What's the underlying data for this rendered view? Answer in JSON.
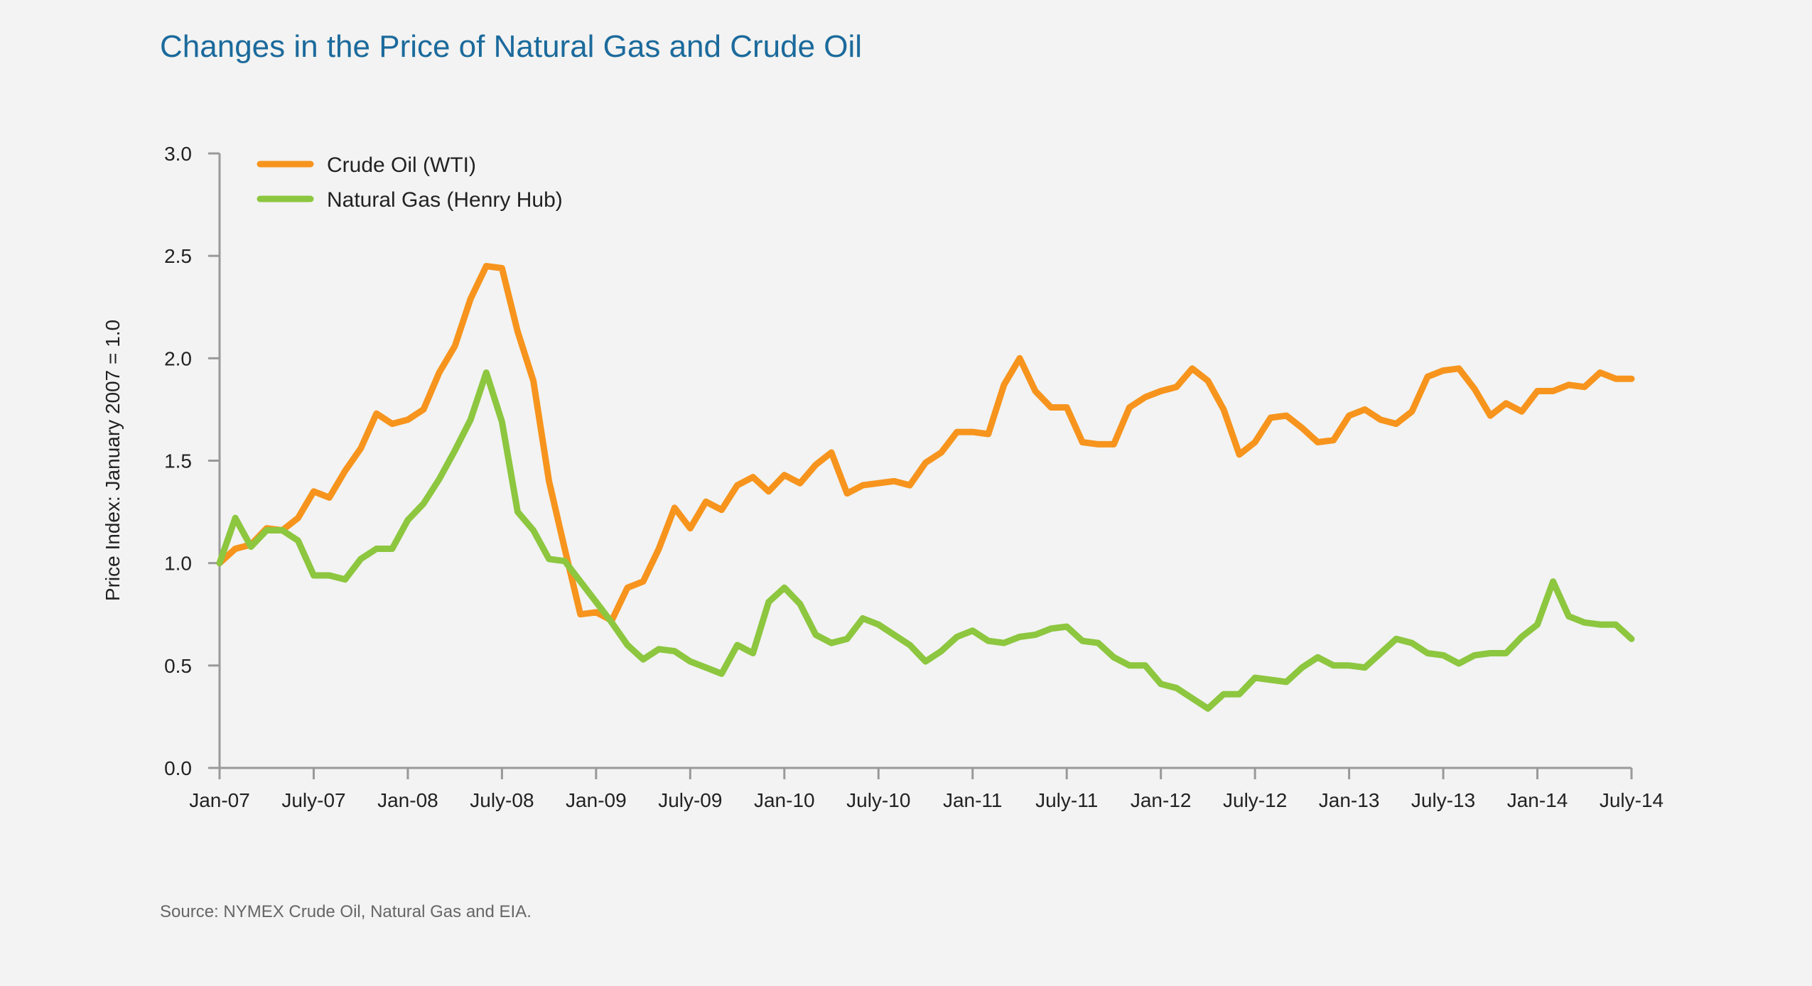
{
  "chart_data": {
    "type": "line",
    "title": "Changes in the Price of Natural Gas and Crude Oil",
    "xlabel": "",
    "ylabel": "Price Index: January 2007 = 1.0",
    "ylim": [
      0,
      3
    ],
    "yticks": [
      "0.0",
      "0.5",
      "1.0",
      "1.5",
      "2.0",
      "2.5",
      "3.0"
    ],
    "xticks": [
      "Jan-07",
      "July-07",
      "Jan-08",
      "July-08",
      "Jan-09",
      "July-09",
      "Jan-10",
      "July-10",
      "Jan-11",
      "July-11",
      "Jan-12",
      "July-12",
      "Jan-13",
      "July-13",
      "Jan-14",
      "July-14"
    ],
    "x_range": [
      "Jan-07",
      "July-14"
    ],
    "x_frequency": "monthly",
    "legend_position": "top-left",
    "grid": false,
    "series": [
      {
        "name": "Crude Oil (WTI)",
        "color": "#f7941d",
        "values": [
          1.0,
          1.07,
          1.09,
          1.17,
          1.16,
          1.22,
          1.35,
          1.32,
          1.45,
          1.56,
          1.73,
          1.68,
          1.7,
          1.75,
          1.93,
          2.06,
          2.29,
          2.45,
          2.44,
          2.13,
          1.89,
          1.4,
          1.07,
          0.75,
          0.76,
          0.72,
          0.88,
          0.91,
          1.07,
          1.27,
          1.17,
          1.3,
          1.26,
          1.38,
          1.42,
          1.35,
          1.43,
          1.39,
          1.48,
          1.54,
          1.34,
          1.38,
          1.39,
          1.4,
          1.38,
          1.49,
          1.54,
          1.64,
          1.64,
          1.63,
          1.87,
          2.0,
          1.84,
          1.76,
          1.76,
          1.59,
          1.58,
          1.58,
          1.76,
          1.81,
          1.84,
          1.86,
          1.95,
          1.89,
          1.75,
          1.53,
          1.59,
          1.71,
          1.72,
          1.66,
          1.59,
          1.6,
          1.72,
          1.75,
          1.7,
          1.68,
          1.74,
          1.91,
          1.94,
          1.95,
          1.85,
          1.72,
          1.78,
          1.74,
          1.84,
          1.84,
          1.87,
          1.86,
          1.93,
          1.9,
          1.9
        ]
      },
      {
        "name": "Natural Gas (Henry Hub)",
        "color": "#8dc63f",
        "values": [
          1.0,
          1.22,
          1.08,
          1.16,
          1.16,
          1.11,
          0.94,
          0.94,
          0.92,
          1.02,
          1.07,
          1.07,
          1.21,
          1.29,
          1.41,
          1.55,
          1.7,
          1.93,
          1.69,
          1.25,
          1.16,
          1.02,
          1.01,
          0.91,
          0.81,
          0.71,
          0.6,
          0.53,
          0.58,
          0.57,
          0.52,
          0.49,
          0.46,
          0.6,
          0.56,
          0.81,
          0.88,
          0.8,
          0.65,
          0.61,
          0.63,
          0.73,
          0.7,
          0.65,
          0.6,
          0.52,
          0.57,
          0.64,
          0.67,
          0.62,
          0.61,
          0.64,
          0.65,
          0.68,
          0.69,
          0.62,
          0.61,
          0.54,
          0.5,
          0.5,
          0.41,
          0.39,
          0.34,
          0.29,
          0.36,
          0.36,
          0.44,
          0.43,
          0.42,
          0.49,
          0.54,
          0.5,
          0.5,
          0.49,
          0.56,
          0.63,
          0.61,
          0.56,
          0.55,
          0.51,
          0.55,
          0.56,
          0.56,
          0.64,
          0.7,
          0.91,
          0.74,
          0.71,
          0.7,
          0.7,
          0.63
        ]
      }
    ],
    "source": "Source: NYMEX Crude Oil, Natural Gas and EIA."
  }
}
